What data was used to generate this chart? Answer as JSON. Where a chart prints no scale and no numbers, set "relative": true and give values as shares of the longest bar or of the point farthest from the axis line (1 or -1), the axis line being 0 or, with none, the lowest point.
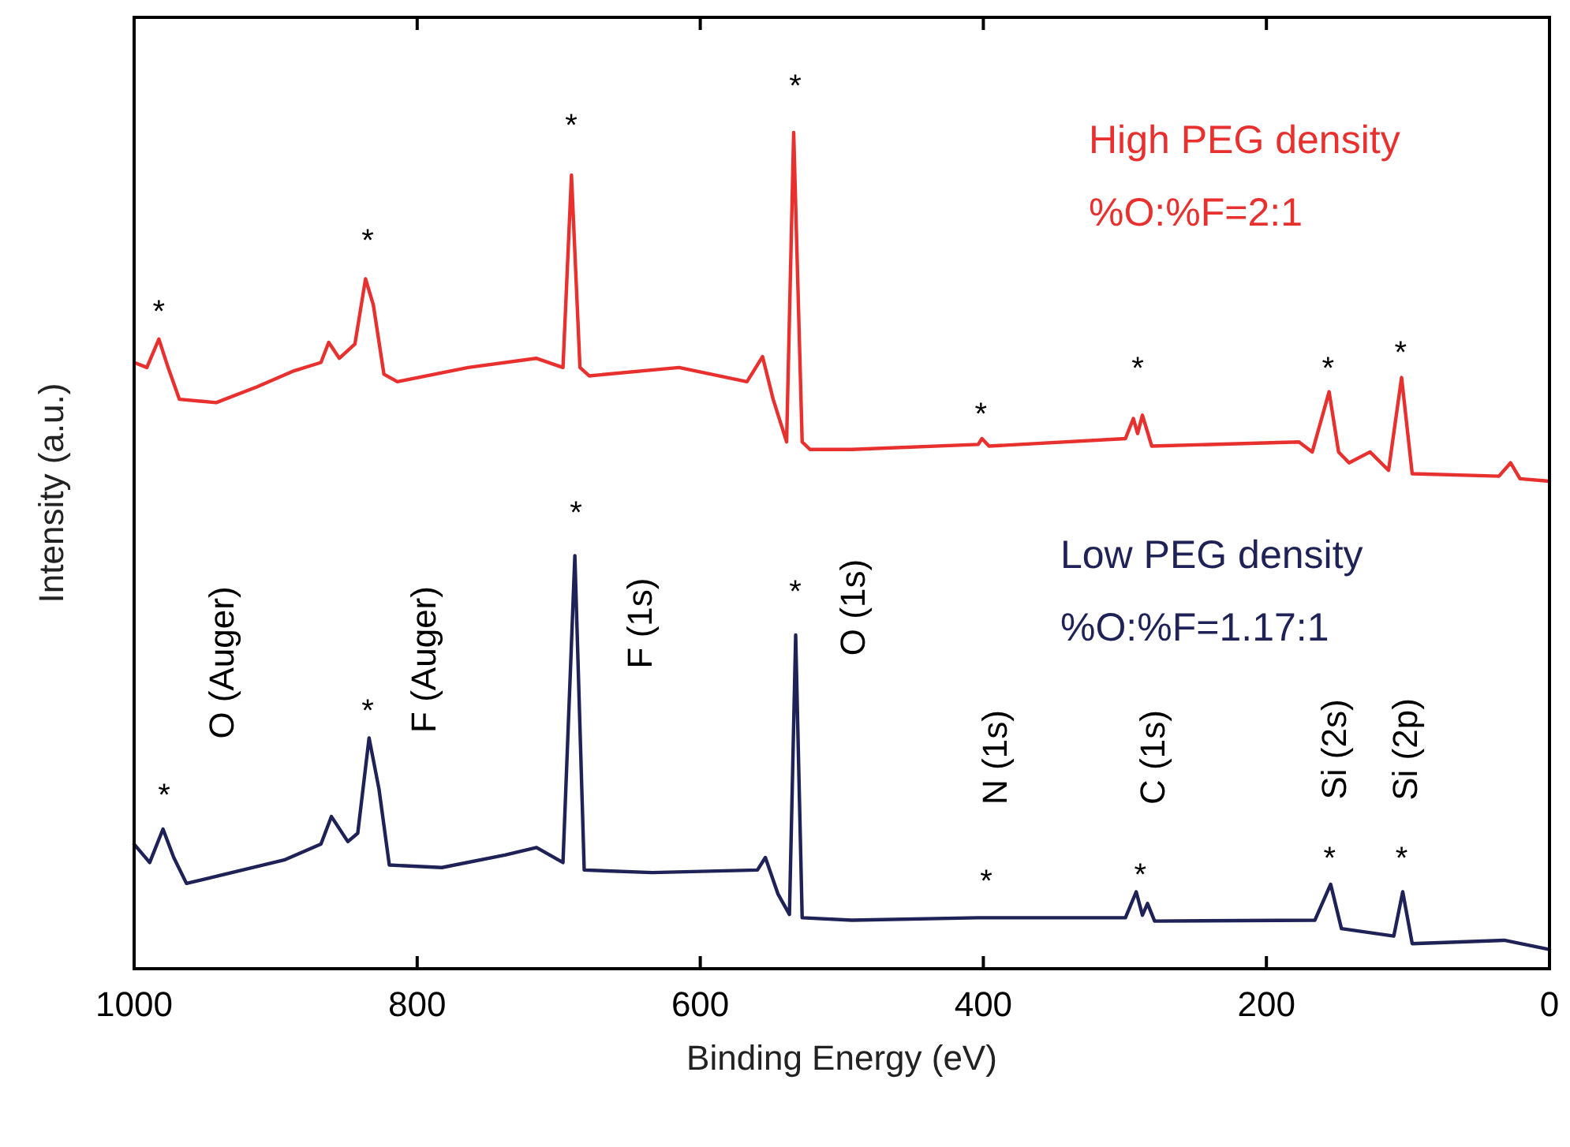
{
  "chart_data": {
    "type": "line",
    "relative": true,
    "xlabel": "Binding Energy (eV)",
    "ylabel": "Intensity (a.u.)",
    "xlim": [
      1000,
      0
    ],
    "xticks": [
      1000,
      800,
      600,
      400,
      200,
      0
    ],
    "legend": false,
    "grid": false,
    "marker": "none",
    "line_style": "solid",
    "series": [
      {
        "name": "High PEG density",
        "color": "#e8312f",
        "x": [
          1000,
          991,
          982.5,
          976,
          968,
          942,
          913,
          887,
          868,
          862.5,
          855,
          844,
          836.5,
          831,
          823.5,
          814,
          764,
          716,
          697,
          691,
          685,
          678.5,
          615,
          567,
          556,
          548.5,
          539,
          534,
          528,
          522.5,
          493,
          403.6,
          401,
          396,
          299.6,
          294,
          291,
          287.6,
          281,
          177,
          167.6,
          155.7,
          149,
          141.6,
          126.8,
          113.7,
          104.5,
          97,
          35.7,
          27.5,
          20.8,
          0
        ],
        "values": [
          0.725,
          0.719,
          0.753,
          0.719,
          0.681,
          0.677,
          0.696,
          0.715,
          0.725,
          0.749,
          0.73,
          0.747,
          0.825,
          0.794,
          0.711,
          0.702,
          0.719,
          0.73,
          0.719,
          0.949,
          0.719,
          0.709,
          0.719,
          0.702,
          0.732,
          0.681,
          0.63,
          1.0,
          0.63,
          0.621,
          0.621,
          0.627,
          0.634,
          0.625,
          0.634,
          0.658,
          0.64,
          0.662,
          0.625,
          0.63,
          0.618,
          0.69,
          0.618,
          0.605,
          0.618,
          0.596,
          0.707,
          0.592,
          0.589,
          0.605,
          0.586,
          0.583
        ]
      },
      {
        "name": "Low PEG density",
        "color": "#1f2257",
        "x": [
          1000,
          989,
          979.6,
          972,
          963,
          931,
          894,
          868,
          860.6,
          849,
          842,
          834,
          827,
          819.7,
          782.6,
          738,
          715.7,
          697,
          688.6,
          682,
          634,
          559.6,
          554,
          545,
          537,
          532.6,
          528,
          492.8,
          403.6,
          299.6,
          292,
          287.6,
          284,
          279,
          165.8,
          154.6,
          147,
          110,
          103.7,
          97,
          32,
          0
        ],
        "values": [
          0.149,
          0.127,
          0.167,
          0.133,
          0.102,
          0.115,
          0.13,
          0.149,
          0.182,
          0.152,
          0.162,
          0.276,
          0.215,
          0.124,
          0.121,
          0.136,
          0.145,
          0.127,
          0.494,
          0.118,
          0.115,
          0.118,
          0.133,
          0.089,
          0.065,
          0.399,
          0.061,
          0.058,
          0.061,
          0.061,
          0.092,
          0.064,
          0.078,
          0.057,
          0.058,
          0.101,
          0.048,
          0.039,
          0.092,
          0.03,
          0.034,
          0.023
        ]
      }
    ],
    "annotations": [
      "%O:%F=2:1",
      "%O:%F=1.17:1",
      "O (Auger)",
      "F (Auger)",
      "F (1s)",
      "O (1s)",
      "N (1s)",
      "C (1s)",
      "Si (2s)",
      "Si (2p)",
      "*",
      "*",
      "*",
      "*",
      "*",
      "*",
      "*",
      "*",
      "*",
      "*",
      "*",
      "*",
      "*",
      "*",
      "*",
      "*"
    ]
  }
}
